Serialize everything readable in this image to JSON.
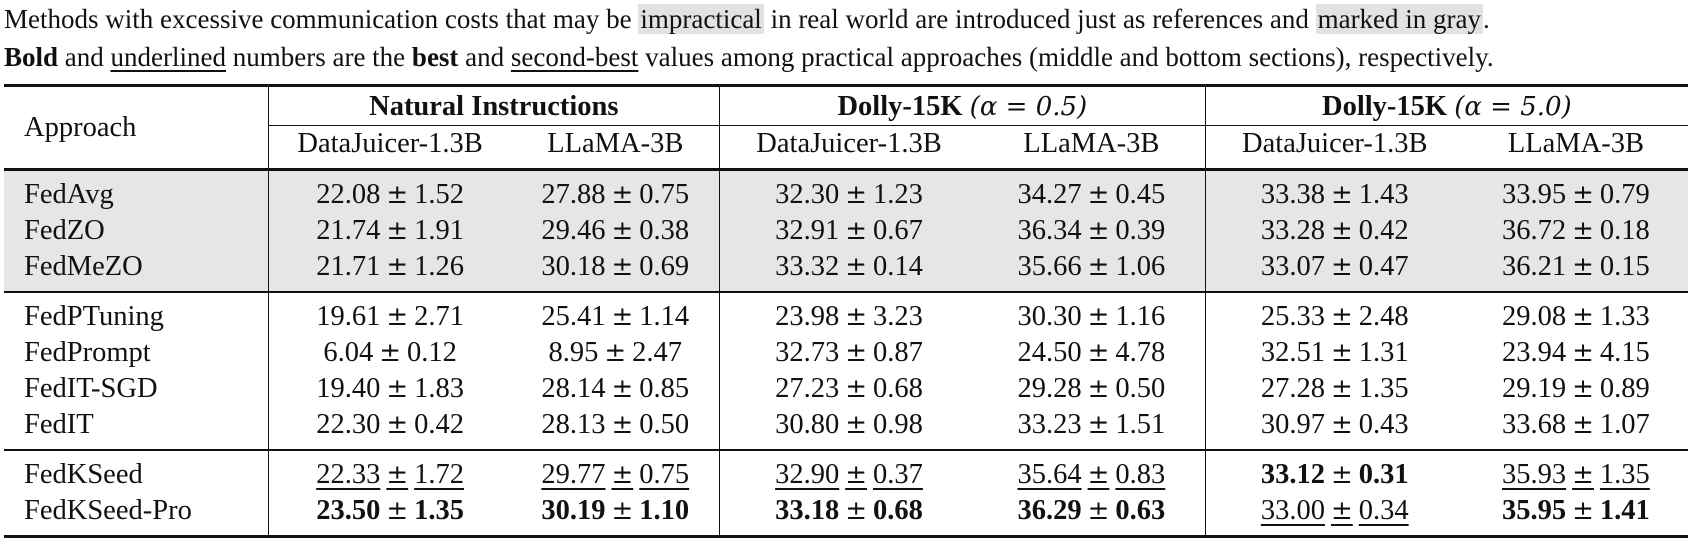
{
  "caption": {
    "line1_parts": [
      "Methods with excessive communication costs that may be ",
      "impractical",
      " in real world are introduced just as references and ",
      "marked in gray",
      "."
    ],
    "line2_parts": [
      "Bold",
      " and ",
      "underlined",
      " numbers are the ",
      "best",
      " and ",
      "second-best",
      " values among practical approaches (middle and bottom sections), respectively."
    ]
  },
  "header": {
    "approach": "Approach",
    "groups": [
      {
        "name": "Natural Instructions",
        "param": ""
      },
      {
        "name": "Dolly-15K",
        "param": "(α = 0.5)"
      },
      {
        "name": "Dolly-15K",
        "param": "(α = 5.0)"
      }
    ],
    "models": [
      "DataJuicer-1.3B",
      "LLaMA-3B",
      "DataJuicer-1.3B",
      "LLaMA-3B",
      "DataJuicer-1.3B",
      "LLaMA-3B"
    ]
  },
  "pm_symbol": "±",
  "sections": [
    {
      "gray": true,
      "rows": [
        {
          "name": "FedAvg",
          "cells": [
            [
              "22.08",
              "1.52",
              ""
            ],
            [
              "27.88",
              "0.75",
              ""
            ],
            [
              "32.30",
              "1.23",
              ""
            ],
            [
              "34.27",
              "0.45",
              ""
            ],
            [
              "33.38",
              "1.43",
              ""
            ],
            [
              "33.95",
              "0.79",
              ""
            ]
          ]
        },
        {
          "name": "FedZO",
          "cells": [
            [
              "21.74",
              "1.91",
              ""
            ],
            [
              "29.46",
              "0.38",
              ""
            ],
            [
              "32.91",
              "0.67",
              ""
            ],
            [
              "36.34",
              "0.39",
              ""
            ],
            [
              "33.28",
              "0.42",
              ""
            ],
            [
              "36.72",
              "0.18",
              ""
            ]
          ]
        },
        {
          "name": "FedMeZO",
          "cells": [
            [
              "21.71",
              "1.26",
              ""
            ],
            [
              "30.18",
              "0.69",
              ""
            ],
            [
              "33.32",
              "0.14",
              ""
            ],
            [
              "35.66",
              "1.06",
              ""
            ],
            [
              "33.07",
              "0.47",
              ""
            ],
            [
              "36.21",
              "0.15",
              ""
            ]
          ]
        }
      ]
    },
    {
      "gray": false,
      "rows": [
        {
          "name": "FedPTuning",
          "cells": [
            [
              "19.61",
              "2.71",
              ""
            ],
            [
              "25.41",
              "1.14",
              ""
            ],
            [
              "23.98",
              "3.23",
              ""
            ],
            [
              "30.30",
              "1.16",
              ""
            ],
            [
              "25.33",
              "2.48",
              ""
            ],
            [
              "29.08",
              "1.33",
              ""
            ]
          ]
        },
        {
          "name": "FedPrompt",
          "cells": [
            [
              "6.04",
              "0.12",
              ""
            ],
            [
              "8.95",
              "2.47",
              ""
            ],
            [
              "32.73",
              "0.87",
              ""
            ],
            [
              "24.50",
              "4.78",
              ""
            ],
            [
              "32.51",
              "1.31",
              ""
            ],
            [
              "23.94",
              "4.15",
              ""
            ]
          ]
        },
        {
          "name": "FedIT-SGD",
          "cells": [
            [
              "19.40",
              "1.83",
              ""
            ],
            [
              "28.14",
              "0.85",
              ""
            ],
            [
              "27.23",
              "0.68",
              ""
            ],
            [
              "29.28",
              "0.50",
              ""
            ],
            [
              "27.28",
              "1.35",
              ""
            ],
            [
              "29.19",
              "0.89",
              ""
            ]
          ]
        },
        {
          "name": "FedIT",
          "cells": [
            [
              "22.30",
              "0.42",
              ""
            ],
            [
              "28.13",
              "0.50",
              ""
            ],
            [
              "30.80",
              "0.98",
              ""
            ],
            [
              "33.23",
              "1.51",
              ""
            ],
            [
              "30.97",
              "0.43",
              ""
            ],
            [
              "33.68",
              "1.07",
              ""
            ]
          ]
        }
      ]
    },
    {
      "gray": false,
      "rows": [
        {
          "name": "FedKSeed",
          "cells": [
            [
              "22.33",
              "1.72",
              "u"
            ],
            [
              "29.77",
              "0.75",
              "u"
            ],
            [
              "32.90",
              "0.37",
              "u"
            ],
            [
              "35.64",
              "0.83",
              "u"
            ],
            [
              "33.12",
              "0.31",
              "b"
            ],
            [
              "35.93",
              "1.35",
              "u"
            ]
          ]
        },
        {
          "name": "FedKSeed-Pro",
          "cells": [
            [
              "23.50",
              "1.35",
              "b"
            ],
            [
              "30.19",
              "1.10",
              "b"
            ],
            [
              "33.18",
              "0.68",
              "b"
            ],
            [
              "36.29",
              "0.63",
              "b"
            ],
            [
              "33.00",
              "0.34",
              "u"
            ],
            [
              "35.95",
              "1.41",
              "b"
            ]
          ]
        }
      ]
    }
  ]
}
